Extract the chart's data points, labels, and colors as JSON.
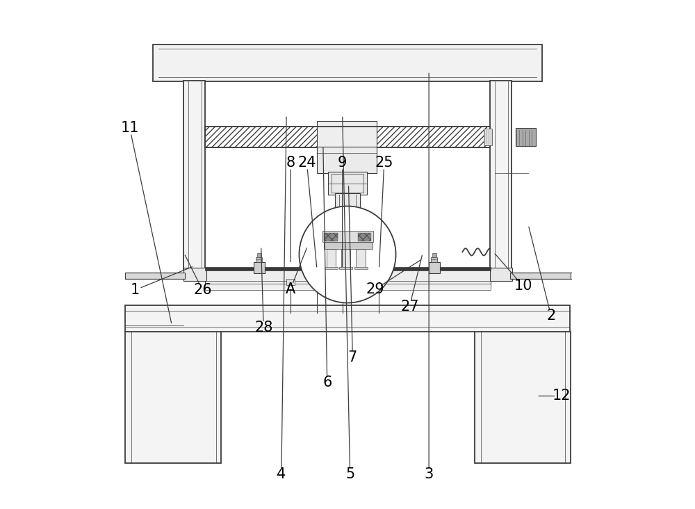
{
  "bg_color": "#FFFFFF",
  "line_color": "#3c3c3c",
  "label_color": "#000000",
  "label_fontsize": 15,
  "figsize": [
    10.0,
    7.32
  ],
  "labels": {
    "1": [
      0.082,
      0.43,
      0.2,
      0.478
    ],
    "2": [
      0.9,
      0.38,
      0.855,
      0.56
    ],
    "3": [
      0.66,
      0.068,
      0.66,
      0.862
    ],
    "4": [
      0.37,
      0.068,
      0.38,
      0.776
    ],
    "5": [
      0.505,
      0.068,
      0.49,
      0.776
    ],
    "6": [
      0.46,
      0.248,
      0.452,
      0.716
    ],
    "7": [
      0.51,
      0.298,
      0.502,
      0.64
    ],
    "8": [
      0.388,
      0.68,
      0.388,
      0.48
    ],
    "9": [
      0.49,
      0.68,
      0.49,
      0.47
    ],
    "10": [
      0.845,
      0.438,
      0.786,
      0.506
    ],
    "11": [
      0.072,
      0.748,
      0.155,
      0.36
    ],
    "12": [
      0.92,
      0.222,
      0.87,
      0.222
    ],
    "24": [
      0.42,
      0.68,
      0.44,
      0.47
    ],
    "25": [
      0.572,
      0.68,
      0.562,
      0.47
    ],
    "26": [
      0.215,
      0.43,
      0.178,
      0.504
    ],
    "27": [
      0.622,
      0.398,
      0.648,
      0.504
    ],
    "28": [
      0.335,
      0.356,
      0.33,
      0.518
    ],
    "29": [
      0.555,
      0.432,
      0.648,
      0.492
    ],
    "A": [
      0.388,
      0.432,
      0.422,
      0.518
    ]
  }
}
